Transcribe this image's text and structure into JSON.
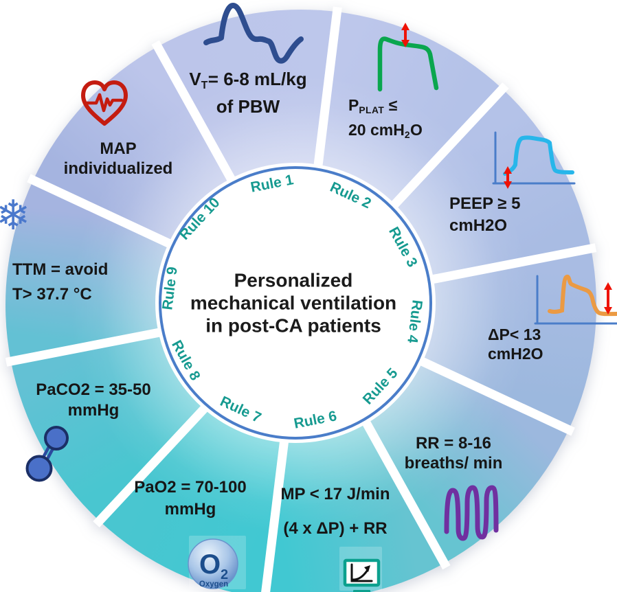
{
  "title": {
    "line1": "Personalized",
    "line2": "mechanical ventilation",
    "line3": "in post-CA patients"
  },
  "ring": {
    "rules": [
      "Rule 1",
      "Rule 2",
      "Rule 3",
      "Rule 4",
      "Rule 5",
      "Rule 6",
      "Rule 7",
      "Rule 8",
      "Rule 9",
      "Rule 10"
    ]
  },
  "sectors": {
    "rule1": {
      "pre": "V",
      "sub": "T",
      "post": "= 6-8 mL/kg",
      "line2": "of PBW"
    },
    "rule2": {
      "pre": "P",
      "sub": "PLAT",
      "post": " ≤",
      "l2pre": "20 cmH",
      "l2sub": "2",
      "l2post": "O"
    },
    "rule3": {
      "line1": "PEEP ≥ 5",
      "line2": "cmH2O"
    },
    "rule4": {
      "line1": "ΔP< 13",
      "line2": "cmH2O"
    },
    "rule5": {
      "line1": "RR = 8-16",
      "line2": "breaths/ min"
    },
    "rule6": {
      "line1": "MP < 17 J/min",
      "line2": "(4 x ΔP) + RR"
    },
    "rule7": {
      "line1": "PaO2 = 70-100",
      "line2": "mmHg"
    },
    "rule8": {
      "line1": "PaCO2 = 35-50",
      "line2": "mmHg"
    },
    "rule9": {
      "line1": "TTM = avoid",
      "line2": "T> 37.7 °C"
    },
    "rule10": {
      "line1": "MAP",
      "line2": "individualized"
    }
  },
  "oxygen_icon": {
    "symbol": "O",
    "subscript": "2",
    "label": "Oxygen"
  },
  "snowflake_icon": {
    "glyph": "❄"
  },
  "wheel": {
    "boundary_colors": [
      "#bcc5ea",
      "#bdc7eb",
      "#b4c2e8",
      "#a9bce3",
      "#9cb8de",
      "#66c4d1",
      "#41c8d2",
      "#49c6d0",
      "#63c1d4",
      "#a5b4e0"
    ],
    "ring_color": "#4a7dc9",
    "rule_label_color": "#169a90",
    "icon_colors": {
      "flow_navy": "#2e4d8f",
      "pplat_green": "#0aa64e",
      "peep_cyan": "#27b6ea",
      "dp_orange": "#eb9a43",
      "rr_purple": "#7030a0",
      "monitor_teal": "#0ba08e",
      "molecule_blue": "#4a70c8",
      "snowflake_blue": "#4a78cc",
      "heart_red": "#c41c10",
      "arrow_red": "#ee1205",
      "axis_blue": "#4a7dc9"
    }
  }
}
